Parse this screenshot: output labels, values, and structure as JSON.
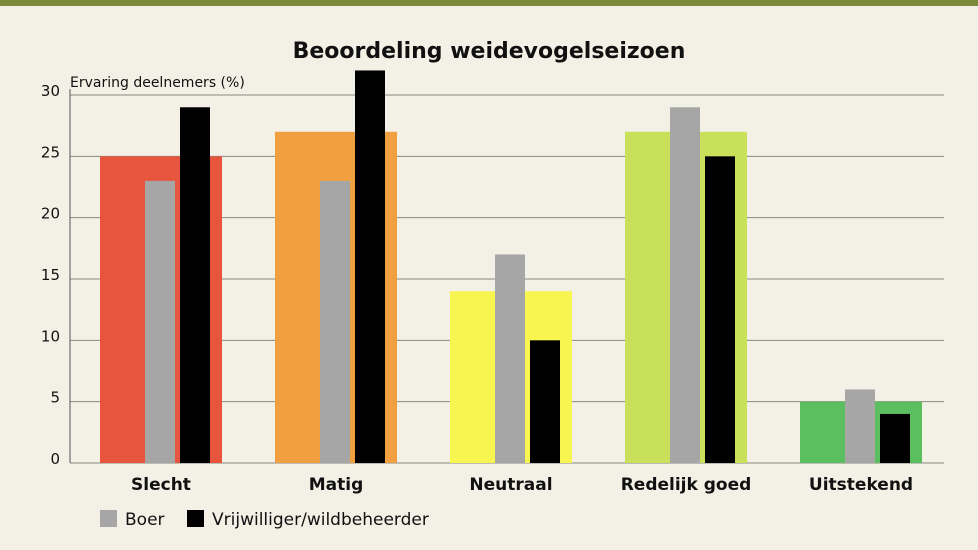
{
  "chart_data": {
    "type": "bar",
    "title": "Beoordeling weidevogelseizoen",
    "ylabel": "Ervaring deelnemers (%)",
    "xlabel": "",
    "ylim": [
      0,
      30
    ],
    "yticks": [
      0,
      5,
      10,
      15,
      20,
      25,
      30
    ],
    "grid": true,
    "legend_position": "bottom-left",
    "categories": [
      "Slecht",
      "Matig",
      "Neutraal",
      "Redelijk goed",
      "Uitstekend"
    ],
    "category_colors": [
      "#e8553e",
      "#f0a040",
      "#f8f450",
      "#c8e05a",
      "#5cbf5f"
    ],
    "background_values": [
      25,
      27,
      14,
      27,
      5
    ],
    "series": [
      {
        "name": "Boer",
        "color": "#a6a6a6",
        "values": [
          23,
          23,
          17,
          29,
          6
        ]
      },
      {
        "name": "Vrijwilliger/wildbeheerder",
        "color": "#000000",
        "values": [
          29,
          32,
          10,
          25,
          4
        ]
      }
    ]
  }
}
